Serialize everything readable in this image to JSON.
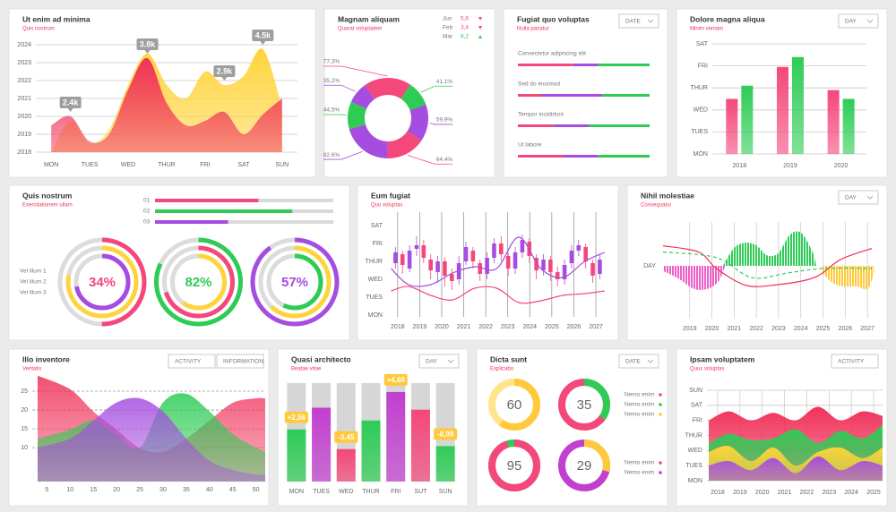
{
  "chart_data": [
    {
      "type": "area",
      "title": "Ut enim ad minima",
      "subtitle": "Quis nostrum",
      "x": [
        0,
        0.5,
        1,
        1.5,
        2,
        2.5,
        3,
        3.5,
        4,
        4.5,
        5,
        5.5,
        6
      ],
      "xlim": [
        -0.4,
        6.4
      ],
      "xticks": [
        {
          "value": 0,
          "label": "MON"
        },
        {
          "value": 1,
          "label": "TUES"
        },
        {
          "value": 2,
          "label": "WED"
        },
        {
          "value": 3,
          "label": "THUR"
        },
        {
          "value": 4,
          "label": "FRI"
        },
        {
          "value": 5,
          "label": "SAT"
        },
        {
          "value": 6,
          "label": "SUN"
        }
      ],
      "ylim": [
        2018,
        2024.75
      ],
      "yticks": [
        2018,
        2019,
        2020,
        2021,
        2022,
        2023,
        2024
      ],
      "grid": true,
      "series": [
        {
          "color": "#ffd43b",
          "values": [
            2018,
            2019.75,
            2018.5,
            2019.25,
            2021.75,
            2023.5,
            2021.75,
            2021,
            2022.5,
            2021.75,
            2022.25,
            2023.75,
            2020.5
          ]
        },
        {
          "color": "#f0325a",
          "values": [
            2019.5,
            2020,
            2018.6,
            2019,
            2021.5,
            2023.25,
            2020.75,
            2019.5,
            2019.75,
            2020.25,
            2019,
            2020.1,
            2021
          ]
        }
      ],
      "annotations": [
        "2.4k",
        "3.8k",
        "2.9k",
        "4.5k"
      ]
    },
    {
      "type": "donut",
      "title": "Magnam aliquam",
      "subtitle": "Quarat voluptatem",
      "values": [
        77.3,
        41.1,
        59.9,
        64.4,
        82.6,
        44.5,
        35.2
      ],
      "value_labels": [
        "77,3%",
        "41,1%",
        "59,9%",
        "64,4%",
        "82,6%",
        "44,5%",
        "35,2%"
      ],
      "colors": [
        "#f4477a",
        "#2ecc55",
        "#a54de0",
        "#f4477a",
        "#a54de0",
        "#2ecc55",
        "#a54de0"
      ],
      "legend": [
        {
          "name": "Jun",
          "value": 5.6,
          "label": "5,6",
          "trend": "down",
          "color": "#f4477a"
        },
        {
          "name": "Feb",
          "value": 3.4,
          "label": "3,4",
          "trend": "down",
          "color": "#f4477a"
        },
        {
          "name": "Mar",
          "value": 8.2,
          "label": "8,2",
          "trend": "up",
          "color": "#2ecc55"
        }
      ]
    },
    {
      "type": "progress",
      "title": "Fugiat quo voluptas",
      "subtitle": "Nulla pariatur",
      "control": "DATE",
      "colors": [
        "#f4477a",
        "#a54de0",
        "#2ecc55"
      ],
      "items": [
        {
          "label": "Consectetur adipiscing elit",
          "values": [
            42,
            19,
            39
          ]
        },
        {
          "label": "Sed do eiusmod",
          "values": [
            18,
            46,
            36
          ]
        },
        {
          "label": "Tempor incididunt",
          "values": [
            27,
            27,
            46
          ]
        },
        {
          "label": "Ut labore",
          "values": [
            35,
            26,
            39
          ]
        }
      ]
    },
    {
      "type": "bar",
      "title": "Dolore magna aliqua",
      "subtitle": "Minim veniam",
      "control": "DAY",
      "categories": [
        "2018",
        "2019",
        "2020"
      ],
      "ylim": [
        0,
        5
      ],
      "yticks": [
        {
          "value": 0,
          "label": "MON"
        },
        {
          "value": 1,
          "label": "TUES"
        },
        {
          "value": 2,
          "label": "WED"
        },
        {
          "value": 3,
          "label": "THUR"
        },
        {
          "value": 4,
          "label": "FRI"
        },
        {
          "value": 5,
          "label": "SAT"
        }
      ],
      "grid": true,
      "series": [
        {
          "color": "#f4477a",
          "values": [
            2.5,
            3.95,
            2.9
          ]
        },
        {
          "color": "#2ecc55",
          "values": [
            3.1,
            4.4,
            2.5
          ]
        }
      ]
    },
    {
      "type": "rings",
      "title": "Quis nostrum",
      "subtitle": "Exercitationem ullam",
      "bars": [
        {
          "label": "01",
          "value": 58,
          "color": "#f4477a"
        },
        {
          "label": "02",
          "value": 77,
          "color": "#2ecc55"
        },
        {
          "label": "03",
          "value": 41,
          "color": "#a54de0"
        }
      ],
      "series": [
        {
          "name": "Vel illum 1"
        },
        {
          "name": "Vel illum 2"
        },
        {
          "name": "Vel illum 3"
        }
      ],
      "rings": [
        {
          "label": "34%",
          "color": "#f4477a",
          "arcs": [
            50,
            78,
            72
          ],
          "colors": [
            "#f4477a",
            "#ffd43b",
            "#a54de0"
          ]
        },
        {
          "label": "82%",
          "color": "#2ecc55",
          "arcs": [
            82,
            70,
            60
          ],
          "colors": [
            "#2ecc55",
            "#f4477a",
            "#ffd43b"
          ]
        },
        {
          "label": "57%",
          "color": "#a54de0",
          "arcs": [
            90,
            62,
            57
          ],
          "colors": [
            "#a54de0",
            "#ffd43b",
            "#2ecc55"
          ]
        }
      ]
    },
    {
      "type": "candlestick",
      "title": "Eum fugiat",
      "subtitle": "Quo voluptas",
      "x": [
        2017.9,
        2018.22,
        2018.54,
        2018.86,
        2019.18,
        2019.5,
        2019.82,
        2020.14,
        2020.46,
        2020.78,
        2021.1,
        2021.42,
        2021.74,
        2022.06,
        2022.38,
        2022.7,
        2023.02,
        2023.34,
        2023.66,
        2023.98,
        2024.3,
        2024.62,
        2024.94,
        2025.26,
        2025.58,
        2025.9,
        2026.22,
        2026.54,
        2026.86,
        2027.18
      ],
      "open": [
        2.9,
        3.4,
        2.6,
        3.7,
        3.9,
        3.1,
        2.4,
        3.0,
        2.3,
        2.0,
        3.0,
        3.6,
        2.9,
        2.3,
        3.2,
        4.0,
        3.3,
        2.6,
        3.5,
        4.1,
        3.2,
        2.5,
        3.1,
        2.4,
        2.0,
        2.9,
        3.6,
        3.8,
        2.9,
        2.3
      ],
      "close": [
        3.5,
        2.8,
        3.6,
        3.9,
        3.2,
        2.5,
        3.0,
        2.2,
        1.9,
        2.9,
        3.8,
        3.0,
        2.3,
        3.2,
        4.0,
        3.4,
        2.6,
        3.5,
        4.2,
        3.3,
        2.5,
        3.1,
        2.4,
        2.0,
        2.8,
        3.6,
        3.9,
        3.0,
        2.2,
        3.1
      ],
      "high": [
        3.8,
        3.6,
        3.9,
        4.4,
        4.2,
        3.4,
        3.3,
        3.2,
        2.6,
        3.3,
        4.1,
        3.8,
        3.1,
        3.5,
        4.3,
        4.4,
        3.5,
        3.8,
        4.5,
        4.3,
        3.4,
        3.4,
        3.3,
        2.7,
        3.1,
        3.9,
        4.2,
        4.0,
        3.1,
        3.4
      ],
      "low": [
        2.6,
        2.3,
        2.4,
        3.3,
        2.9,
        2.0,
        1.8,
        1.6,
        1.4,
        1.7,
        2.8,
        2.6,
        1.9,
        2.0,
        2.9,
        3.0,
        2.2,
        2.3,
        3.2,
        2.9,
        2.0,
        2.2,
        1.9,
        1.6,
        1.7,
        2.6,
        3.3,
        2.6,
        1.8,
        2.0
      ],
      "up_color": "#a54de0",
      "down_color": "#f4477a",
      "xlim": [
        2017.6,
        2027.53
      ],
      "xticks": [
        2018,
        2019,
        2020,
        2021,
        2022,
        2023,
        2024,
        2025,
        2026,
        2027
      ],
      "ylim": [
        0,
        5.75
      ],
      "yticks": [
        {
          "value": 0,
          "label": "MON"
        },
        {
          "value": 1,
          "label": "TUES"
        },
        {
          "value": 2,
          "label": "WED"
        },
        {
          "value": 3,
          "label": "THUR"
        },
        {
          "value": 4,
          "label": "FRI"
        },
        {
          "value": 5,
          "label": "SAT"
        }
      ],
      "lines": [
        {
          "color": "#a54de0",
          "x": [
            2017.7,
            2018.5,
            2019.5,
            2020.5,
            2021.5,
            2022.5,
            2023.5,
            2024.5,
            2025.5,
            2026.5,
            2027.4
          ],
          "values": [
            2.6,
            1.7,
            1.7,
            2.35,
            2.7,
            2.6,
            4.35,
            2.6,
            2.1,
            3.0,
            3.5
          ]
        },
        {
          "color": "#f4477a",
          "x": [
            2017.7,
            2018.5,
            2019.5,
            2020.5,
            2021.5,
            2022.5,
            2023.5,
            2024.5,
            2025.5,
            2026.5,
            2027.4
          ],
          "values": [
            1.35,
            1.6,
            1.1,
            0.85,
            1.5,
            1.5,
            0.7,
            0.8,
            1.1,
            1.2,
            1.35
          ]
        }
      ]
    },
    {
      "type": "wave",
      "title": "Nihil molestiae",
      "subtitle": "Consequatur",
      "control": "DAY",
      "ylabel": "DAY",
      "xlim": [
        2017.8,
        2027.4
      ],
      "xticks": [
        2019,
        2020,
        2021,
        2022,
        2023,
        2024,
        2025,
        2026,
        2027
      ],
      "ylim": [
        -1.5,
        1.5
      ],
      "areas": [
        {
          "color": "#ee5fc8",
          "x": [
            2017.8,
            2018.5,
            2019.2,
            2019.8,
            2020.3,
            2020.6
          ],
          "values": [
            -0.2,
            -0.5,
            -0.9,
            -0.9,
            -0.6,
            0
          ]
        },
        {
          "color": "#2ecc55",
          "x": [
            2020.5,
            2021,
            2021.5,
            2022,
            2022.5,
            2023,
            2023.5,
            2024,
            2024.5,
            2024.7
          ],
          "values": [
            0,
            0.7,
            0.9,
            0.8,
            0.4,
            0.5,
            1.2,
            1.3,
            0.6,
            0
          ]
        },
        {
          "color": "#ffc93c",
          "x": [
            2025,
            2025.5,
            2026,
            2026.5,
            2027,
            2027.3
          ],
          "values": [
            -0.3,
            -0.7,
            -0.8,
            -0.8,
            -0.9,
            -0.3
          ]
        }
      ],
      "lines": [
        {
          "color": "#f0325a",
          "dashed": false,
          "x": [
            2017.8,
            2019.4,
            2020.2,
            2021.5,
            2022.8,
            2024.6,
            2025.8,
            2027.2
          ],
          "values": [
            0.78,
            0.54,
            -0.1,
            -0.75,
            -0.75,
            -0.46,
            0.25,
            0.68
          ]
        },
        {
          "color": "#2ecc55",
          "dashed": true,
          "x": [
            2017.8,
            2020.2,
            2021.8,
            2023.4,
            2025,
            2027.2
          ],
          "values": [
            0.54,
            0.32,
            -0.46,
            -0.28,
            -0.1,
            -0.1
          ]
        }
      ]
    },
    {
      "type": "overlap",
      "title": "Illo inventore",
      "subtitle": "Veritatis",
      "controls": [
        "ACTIVITY",
        "INFORMATION"
      ],
      "x": [
        3,
        10,
        15,
        20,
        25,
        30,
        35,
        40,
        45,
        50,
        52
      ],
      "xlim": [
        3,
        52
      ],
      "xticks": [
        5,
        10,
        15,
        20,
        25,
        30,
        35,
        40,
        45,
        50
      ],
      "ylim": [
        1,
        30
      ],
      "yticks": [
        10,
        15,
        20,
        25
      ],
      "grid": true,
      "series": [
        {
          "color": "#f0325a",
          "values": [
            29.1,
            25.5,
            19.6,
            14.8,
            9.9,
            8.9,
            12.4,
            17.2,
            21.9,
            23.1,
            23.1
          ]
        },
        {
          "color": "#2ecc55",
          "values": [
            12.4,
            14.8,
            17.2,
            13.6,
            10,
            22,
            24.3,
            19.6,
            13.6,
            10,
            8.9
          ]
        },
        {
          "color": "#a54de0",
          "values": [
            10,
            12.4,
            17.2,
            22,
            23.1,
            19.6,
            12.4,
            6.5,
            4.1,
            2.9,
            2.9
          ]
        }
      ]
    },
    {
      "type": "track_bar",
      "title": "Quasi architecto",
      "subtitle": "Beatae vitae",
      "control": "DAY",
      "categories": [
        "MON",
        "TUES",
        "WED",
        "THUR",
        "FRI",
        "SUT",
        "SUN"
      ],
      "ylim": [
        0,
        100
      ],
      "values": [
        53,
        75,
        33,
        62,
        91,
        73,
        36
      ],
      "colors": [
        "#2ecc55",
        "#c23fd0",
        "#f4477a",
        "#2ecc55",
        "#c23fd0",
        "#f4477a",
        "#2ecc55"
      ],
      "badges": [
        "+2,56",
        null,
        "-3,45",
        null,
        "+4,68",
        null,
        "-8,99"
      ],
      "badge_color": "#ffc93c"
    },
    {
      "type": "donuts",
      "title": "Dicta sunt",
      "subtitle": "Explicabo",
      "control": "DATE",
      "rings": [
        {
          "value": 60,
          "colors": [
            "#ffc93c",
            "#ffe58a"
          ]
        },
        {
          "value": 35,
          "colors": [
            "#2ecc55",
            "#f4477a"
          ]
        },
        {
          "value": 95,
          "colors": [
            "#f4477a",
            "#2ecc55"
          ]
        },
        {
          "value": 29,
          "colors": [
            "#ffc93c",
            "#c23fd0"
          ]
        }
      ],
      "legends": [
        [
          {
            "name": "Nemo enim",
            "color": "#f4477a"
          },
          {
            "name": "Nemo enim",
            "color": "#2ecc55"
          },
          {
            "name": "Nemo enim",
            "color": "#ffc93c"
          }
        ],
        [
          {
            "name": "Nemo enim",
            "color": "#f4477a"
          },
          {
            "name": "Nemo enim",
            "color": "#c23fd0"
          }
        ]
      ]
    },
    {
      "type": "layers",
      "title": "Ipsam voluptatem",
      "subtitle": "Quus voluptas",
      "control": "ACTIVITY",
      "x": [
        2017.6,
        2018.5,
        2019.5,
        2020.5,
        2021.5,
        2022.5,
        2023.5,
        2024.5,
        2025.4
      ],
      "xlim": [
        2017.6,
        2025.4
      ],
      "xticks": [
        2018,
        2019,
        2020,
        2021,
        2022,
        2023,
        2024,
        2025
      ],
      "ylim": [
        0,
        6
      ],
      "yticks": [
        {
          "value": 0,
          "label": "MON"
        },
        {
          "value": 1,
          "label": "TUES"
        },
        {
          "value": 2,
          "label": "WED"
        },
        {
          "value": 3,
          "label": "THUR"
        },
        {
          "value": 4,
          "label": "FRI"
        },
        {
          "value": 5,
          "label": "SAT"
        },
        {
          "value": 6,
          "label": "SUN"
        }
      ],
      "grid": true,
      "series": [
        {
          "color": "#f0325a",
          "values": [
            4.0,
            4.6,
            4.0,
            4.5,
            4.0,
            4.9,
            4.0,
            4.6,
            4.3
          ]
        },
        {
          "color": "#2ecc55",
          "values": [
            2.5,
            3.1,
            2.7,
            2.8,
            3.4,
            2.5,
            3.3,
            2.8,
            3.7
          ]
        },
        {
          "color": "#ffd43b",
          "values": [
            1.9,
            2.3,
            1.3,
            2.2,
            1.0,
            1.9,
            2.2,
            1.5,
            2.2
          ]
        },
        {
          "color": "#a54de0",
          "values": [
            1.0,
            1.3,
            0.7,
            1.5,
            0.5,
            1.6,
            0.7,
            1.3,
            1.0
          ]
        }
      ]
    }
  ]
}
